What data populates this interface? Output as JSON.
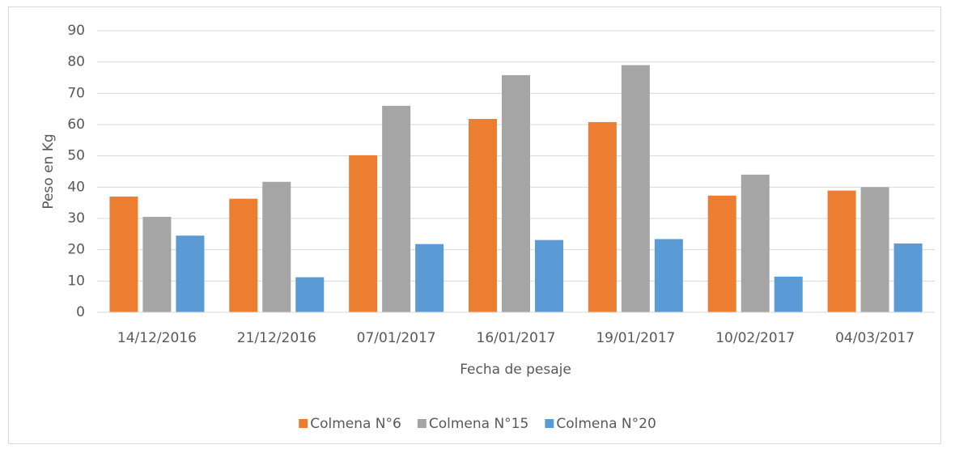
{
  "chart_data": {
    "type": "bar",
    "x_label": "Fecha de pesaje",
    "y_label": "Peso en Kg",
    "categories": [
      "14/12/2016",
      "21/12/2016",
      "07/01/2017",
      "16/01/2017",
      "19/01/2017",
      "10/02/2017",
      "04/03/2017"
    ],
    "series": [
      {
        "name": "Colmena N°6",
        "color": "#ed7d31",
        "values": [
          37,
          36.3,
          50.2,
          61.8,
          60.8,
          37.3,
          38.9
        ]
      },
      {
        "name": "Colmena N°15",
        "color": "#a5a5a5",
        "values": [
          30.5,
          41.7,
          66,
          75.8,
          79,
          44,
          40
        ]
      },
      {
        "name": "Colmena N°20",
        "color": "#5b9bd5",
        "values": [
          24.5,
          11.2,
          21.8,
          23.1,
          23.4,
          11.4,
          22
        ]
      }
    ],
    "ylim": [
      0,
      90
    ],
    "yticks": [
      0,
      10,
      20,
      30,
      40,
      50,
      60,
      70,
      80,
      90
    ],
    "grid": true,
    "legend": "bottom"
  }
}
